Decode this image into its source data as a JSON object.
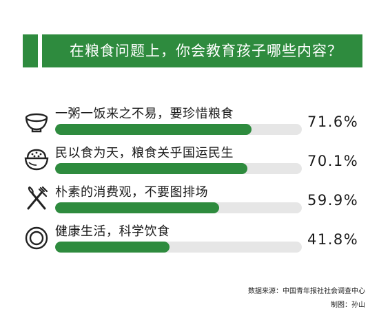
{
  "header": {
    "title": "在粮食问题上，你会教育孩子哪些内容？",
    "accent_color": "#2e8b3e"
  },
  "chart_data": {
    "type": "bar",
    "orientation": "horizontal",
    "title": "在粮食问题上，你会教育孩子哪些内容？",
    "xlim": [
      0,
      100
    ],
    "categories": [
      "一粥一饭来之不易，要珍惜粮食",
      "民以食为天，粮食关乎国运民生",
      "朴素的消费观，不要图排场",
      "健康生活，科学饮食"
    ],
    "values": [
      71.6,
      70.1,
      59.9,
      41.8
    ],
    "value_labels": [
      "71.6%",
      "70.1%",
      "59.9%",
      "41.8%"
    ],
    "icons": [
      "rice-bowl-icon",
      "rice-pot-icon",
      "fork-knife-icon",
      "plate-icon"
    ],
    "bar_color": "#2e8b3e",
    "track_color": "#e6e6e6"
  },
  "footer": {
    "source": "数据来源：中国青年报社社会调查中心",
    "credit": "制图：孙山"
  }
}
